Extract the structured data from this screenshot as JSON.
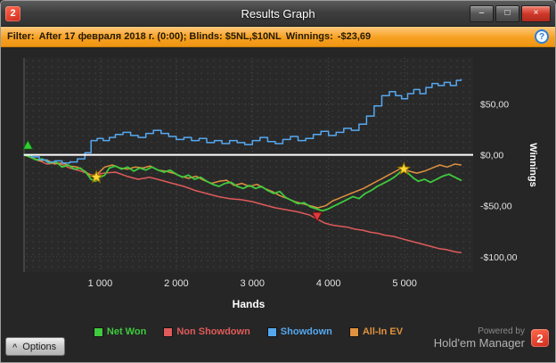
{
  "window": {
    "title": "Results Graph",
    "logo_glyph": "2",
    "controls": {
      "minimize": "–",
      "maximize": "□",
      "close": "×"
    }
  },
  "filter": {
    "label": "Filter:",
    "criteria": "After 17 февраля 2018 г. (0:00); Blinds: $5NL,$10NL",
    "winnings_label": "Winnings:",
    "winnings_value": "-$23,69",
    "help_glyph": "?"
  },
  "footer": {
    "options_label": "Options",
    "chevron_glyph": "^",
    "powered_by": "Powered by",
    "brand": "Hold'em Manager",
    "brand_logo_glyph": "2"
  },
  "colors": {
    "logo_red": "#cf2b1e",
    "logo_red_light": "#ff6a4d",
    "filter_bar": "#f7a121",
    "zero_line": "#ffffff"
  },
  "chart_data": {
    "type": "line",
    "title": "Results Graph",
    "xlabel": "Hands",
    "ylabel": "Winnings",
    "xlim": [
      0,
      5900
    ],
    "ylim": [
      -115,
      95
    ],
    "grid": "dotted",
    "legend_position": "bottom",
    "xticks": [
      1000,
      2000,
      3000,
      4000,
      5000
    ],
    "xtick_labels": [
      "1 000",
      "2 000",
      "3 000",
      "4 000",
      "5 000"
    ],
    "yticks": [
      50,
      0,
      -50,
      -100
    ],
    "ytick_labels": [
      "$50,00",
      "$0,00",
      "-$50,00",
      "-$100,00"
    ],
    "zero_line": {
      "y": 0,
      "color": "#ffffff"
    },
    "series": [
      {
        "name": "Net Won",
        "color": "#3ecb3e",
        "width": 1.8,
        "z": 3,
        "points": [
          [
            0,
            0
          ],
          [
            80,
            -2
          ],
          [
            160,
            -5
          ],
          [
            240,
            -4
          ],
          [
            330,
            -8
          ],
          [
            420,
            -7
          ],
          [
            500,
            -12
          ],
          [
            580,
            -10
          ],
          [
            660,
            -14
          ],
          [
            740,
            -13
          ],
          [
            820,
            -18
          ],
          [
            880,
            -24
          ],
          [
            940,
            -26
          ],
          [
            1000,
            -22
          ],
          [
            1060,
            -20
          ],
          [
            1120,
            -13
          ],
          [
            1200,
            -11
          ],
          [
            1280,
            -14
          ],
          [
            1360,
            -12
          ],
          [
            1440,
            -16
          ],
          [
            1520,
            -13
          ],
          [
            1600,
            -15
          ],
          [
            1680,
            -12
          ],
          [
            1760,
            -15
          ],
          [
            1840,
            -17
          ],
          [
            1920,
            -15
          ],
          [
            2000,
            -19
          ],
          [
            2080,
            -22
          ],
          [
            2160,
            -20
          ],
          [
            2240,
            -24
          ],
          [
            2320,
            -22
          ],
          [
            2400,
            -26
          ],
          [
            2480,
            -29
          ],
          [
            2560,
            -31
          ],
          [
            2640,
            -28
          ],
          [
            2720,
            -27
          ],
          [
            2800,
            -31
          ],
          [
            2880,
            -33
          ],
          [
            2960,
            -30
          ],
          [
            3040,
            -33
          ],
          [
            3120,
            -31
          ],
          [
            3200,
            -35
          ],
          [
            3280,
            -38
          ],
          [
            3360,
            -36
          ],
          [
            3440,
            -42
          ],
          [
            3520,
            -45
          ],
          [
            3600,
            -48
          ],
          [
            3680,
            -47
          ],
          [
            3760,
            -51
          ],
          [
            3840,
            -53
          ],
          [
            3920,
            -55
          ],
          [
            4000,
            -53
          ],
          [
            4080,
            -50
          ],
          [
            4160,
            -47
          ],
          [
            4240,
            -44
          ],
          [
            4320,
            -41
          ],
          [
            4400,
            -43
          ],
          [
            4480,
            -38
          ],
          [
            4560,
            -35
          ],
          [
            4640,
            -31
          ],
          [
            4720,
            -28
          ],
          [
            4800,
            -25
          ],
          [
            4880,
            -21
          ],
          [
            4940,
            -17
          ],
          [
            5000,
            -15
          ],
          [
            5060,
            -19
          ],
          [
            5120,
            -23
          ],
          [
            5180,
            -26
          ],
          [
            5260,
            -24
          ],
          [
            5340,
            -27
          ],
          [
            5420,
            -24
          ],
          [
            5500,
            -21
          ],
          [
            5580,
            -19
          ],
          [
            5660,
            -22
          ],
          [
            5740,
            -25
          ]
        ]
      },
      {
        "name": "Non Showdown",
        "color": "#e05a5a",
        "width": 1.5,
        "z": 1,
        "points": [
          [
            0,
            0
          ],
          [
            150,
            -4
          ],
          [
            300,
            -9
          ],
          [
            450,
            -8
          ],
          [
            600,
            -13
          ],
          [
            750,
            -16
          ],
          [
            900,
            -20
          ],
          [
            1050,
            -18
          ],
          [
            1200,
            -17
          ],
          [
            1350,
            -21
          ],
          [
            1500,
            -24
          ],
          [
            1650,
            -22
          ],
          [
            1800,
            -25
          ],
          [
            1950,
            -28
          ],
          [
            2100,
            -31
          ],
          [
            2250,
            -35
          ],
          [
            2400,
            -38
          ],
          [
            2550,
            -41
          ],
          [
            2700,
            -43
          ],
          [
            2850,
            -44
          ],
          [
            3000,
            -46
          ],
          [
            3150,
            -49
          ],
          [
            3300,
            -52
          ],
          [
            3450,
            -54
          ],
          [
            3600,
            -56
          ],
          [
            3750,
            -59
          ],
          [
            3850,
            -63
          ],
          [
            3950,
            -67
          ],
          [
            4050,
            -69
          ],
          [
            4150,
            -70
          ],
          [
            4250,
            -71
          ],
          [
            4350,
            -73
          ],
          [
            4450,
            -74
          ],
          [
            4550,
            -76
          ],
          [
            4650,
            -77
          ],
          [
            4750,
            -79
          ],
          [
            4850,
            -80
          ],
          [
            4950,
            -82
          ],
          [
            5050,
            -84
          ],
          [
            5150,
            -86
          ],
          [
            5250,
            -88
          ],
          [
            5350,
            -90
          ],
          [
            5450,
            -92
          ],
          [
            5550,
            -93
          ],
          [
            5650,
            -95
          ],
          [
            5740,
            -96
          ]
        ]
      },
      {
        "name": "Showdown",
        "color": "#55a8f0",
        "width": 1.5,
        "z": 4,
        "step": true,
        "points": [
          [
            0,
            0
          ],
          [
            100,
            -2
          ],
          [
            200,
            -5
          ],
          [
            300,
            -7
          ],
          [
            400,
            -6
          ],
          [
            500,
            -8
          ],
          [
            600,
            -7
          ],
          [
            700,
            -4
          ],
          [
            800,
            2
          ],
          [
            880,
            14
          ],
          [
            960,
            16
          ],
          [
            1040,
            14
          ],
          [
            1120,
            17
          ],
          [
            1200,
            20
          ],
          [
            1300,
            22
          ],
          [
            1400,
            19
          ],
          [
            1500,
            17
          ],
          [
            1600,
            21
          ],
          [
            1700,
            24
          ],
          [
            1800,
            21
          ],
          [
            1900,
            18
          ],
          [
            2000,
            15
          ],
          [
            2100,
            17
          ],
          [
            2200,
            14
          ],
          [
            2300,
            16
          ],
          [
            2400,
            12
          ],
          [
            2500,
            14
          ],
          [
            2600,
            11
          ],
          [
            2700,
            14
          ],
          [
            2800,
            12
          ],
          [
            2900,
            10
          ],
          [
            3000,
            14
          ],
          [
            3100,
            17
          ],
          [
            3200,
            13
          ],
          [
            3300,
            11
          ],
          [
            3400,
            15
          ],
          [
            3500,
            18
          ],
          [
            3600,
            14
          ],
          [
            3700,
            16
          ],
          [
            3800,
            20
          ],
          [
            3900,
            23
          ],
          [
            4000,
            19
          ],
          [
            4100,
            22
          ],
          [
            4200,
            26
          ],
          [
            4300,
            24
          ],
          [
            4400,
            30
          ],
          [
            4500,
            38
          ],
          [
            4600,
            48
          ],
          [
            4700,
            58
          ],
          [
            4800,
            62
          ],
          [
            4880,
            58
          ],
          [
            4960,
            55
          ],
          [
            5040,
            60
          ],
          [
            5120,
            64
          ],
          [
            5200,
            60
          ],
          [
            5280,
            66
          ],
          [
            5360,
            70
          ],
          [
            5440,
            68
          ],
          [
            5520,
            71
          ],
          [
            5600,
            68
          ],
          [
            5680,
            73
          ],
          [
            5740,
            74
          ]
        ]
      },
      {
        "name": "All-In EV",
        "color": "#e0913f",
        "width": 1.5,
        "z": 2,
        "points": [
          [
            0,
            0
          ],
          [
            100,
            -3
          ],
          [
            200,
            -6
          ],
          [
            300,
            -5
          ],
          [
            400,
            -9
          ],
          [
            500,
            -8
          ],
          [
            600,
            -11
          ],
          [
            700,
            -12
          ],
          [
            800,
            -16
          ],
          [
            880,
            -21
          ],
          [
            960,
            -19
          ],
          [
            1060,
            -12
          ],
          [
            1160,
            -10
          ],
          [
            1260,
            -13
          ],
          [
            1360,
            -14
          ],
          [
            1460,
            -12
          ],
          [
            1560,
            -13
          ],
          [
            1660,
            -11
          ],
          [
            1760,
            -15
          ],
          [
            1860,
            -16
          ],
          [
            1960,
            -18
          ],
          [
            2060,
            -21
          ],
          [
            2160,
            -23
          ],
          [
            2260,
            -21
          ],
          [
            2360,
            -25
          ],
          [
            2460,
            -28
          ],
          [
            2560,
            -26
          ],
          [
            2660,
            -25
          ],
          [
            2760,
            -30
          ],
          [
            2860,
            -28
          ],
          [
            2960,
            -31
          ],
          [
            3060,
            -29
          ],
          [
            3160,
            -33
          ],
          [
            3260,
            -36
          ],
          [
            3360,
            -40
          ],
          [
            3460,
            -43
          ],
          [
            3560,
            -46
          ],
          [
            3660,
            -48
          ],
          [
            3760,
            -50
          ],
          [
            3860,
            -52
          ],
          [
            3960,
            -50
          ],
          [
            4060,
            -45
          ],
          [
            4160,
            -42
          ],
          [
            4260,
            -39
          ],
          [
            4360,
            -36
          ],
          [
            4460,
            -33
          ],
          [
            4560,
            -29
          ],
          [
            4660,
            -25
          ],
          [
            4760,
            -21
          ],
          [
            4860,
            -17
          ],
          [
            4960,
            -13
          ],
          [
            5060,
            -16
          ],
          [
            5160,
            -18
          ],
          [
            5260,
            -16
          ],
          [
            5360,
            -13
          ],
          [
            5460,
            -10
          ],
          [
            5560,
            -12
          ],
          [
            5660,
            -9
          ],
          [
            5740,
            -10
          ]
        ]
      }
    ],
    "markers": [
      {
        "shape": "arrow-up",
        "x": 50,
        "y": 9,
        "color": "#33cc33"
      },
      {
        "shape": "star",
        "x": 950,
        "y": -22,
        "color": "#ffd633"
      },
      {
        "shape": "arrow-down",
        "x": 3850,
        "y": -60,
        "color": "#e03a3a"
      },
      {
        "shape": "star",
        "x": 4990,
        "y": -14,
        "color": "#ffd633"
      }
    ]
  }
}
